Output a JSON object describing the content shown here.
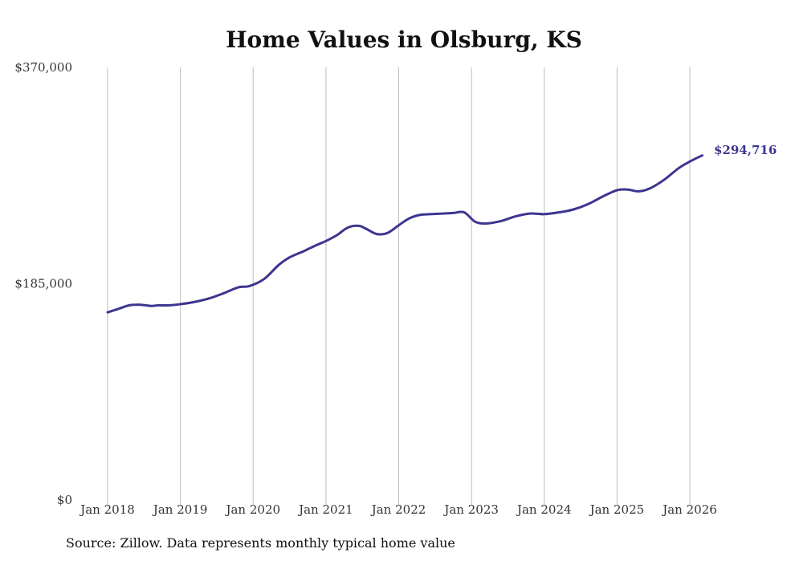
{
  "colors": {
    "line": "#3d3590",
    "grid": "#bdbdbd",
    "axis": "#999999",
    "text": "#333333"
  },
  "source": "Source: Zillow. Data represents monthly typical home value",
  "chart_data": {
    "type": "line",
    "title": "Home Values in Olsburg, KS",
    "xlabel": "",
    "ylabel": "",
    "ylim": [
      0,
      370000
    ],
    "grid": "vertical",
    "yticks": [
      {
        "value": 0,
        "label": "$0"
      },
      {
        "value": 185000,
        "label": "$185,000"
      },
      {
        "value": 370000,
        "label": "$370,000"
      }
    ],
    "xticks": [
      {
        "value": 2018,
        "label": "Jan 2018"
      },
      {
        "value": 2019,
        "label": "Jan 2019"
      },
      {
        "value": 2020,
        "label": "Jan 2020"
      },
      {
        "value": 2021,
        "label": "Jan 2021"
      },
      {
        "value": 2022,
        "label": "Jan 2022"
      },
      {
        "value": 2023,
        "label": "Jan 2023"
      },
      {
        "value": 2024,
        "label": "Jan 2024"
      },
      {
        "value": 2025,
        "label": "Jan 2025"
      },
      {
        "value": 2026,
        "label": "Jan 2026"
      }
    ],
    "xlim": [
      2018,
      2026.17
    ],
    "end_label": "$294,716",
    "series": [
      {
        "name": "Typical home value",
        "x": [
          2018.0,
          2018.15,
          2018.3,
          2018.45,
          2018.6,
          2018.7,
          2018.85,
          2019.0,
          2019.2,
          2019.4,
          2019.6,
          2019.8,
          2019.95,
          2020.15,
          2020.35,
          2020.5,
          2020.7,
          2020.85,
          2021.0,
          2021.15,
          2021.3,
          2021.45,
          2021.55,
          2021.7,
          2021.85,
          2022.0,
          2022.15,
          2022.3,
          2022.45,
          2022.6,
          2022.75,
          2022.9,
          2023.05,
          2023.2,
          2023.4,
          2023.6,
          2023.8,
          2024.0,
          2024.2,
          2024.4,
          2024.6,
          2024.8,
          2025.0,
          2025.15,
          2025.3,
          2025.45,
          2025.65,
          2025.85,
          2026.0,
          2026.17
        ],
        "y": [
          160500,
          163500,
          166500,
          167000,
          166000,
          166500,
          166500,
          167500,
          169500,
          172500,
          177000,
          182000,
          183000,
          189000,
          201000,
          207500,
          213000,
          217500,
          221500,
          226500,
          233000,
          234500,
          232000,
          227500,
          228500,
          235000,
          241000,
          244000,
          244500,
          245000,
          245500,
          246000,
          238000,
          236500,
          238500,
          242500,
          245000,
          244500,
          246000,
          248500,
          253000,
          259500,
          265000,
          265500,
          264000,
          266500,
          274000,
          284000,
          289500,
          294716
        ]
      }
    ]
  }
}
